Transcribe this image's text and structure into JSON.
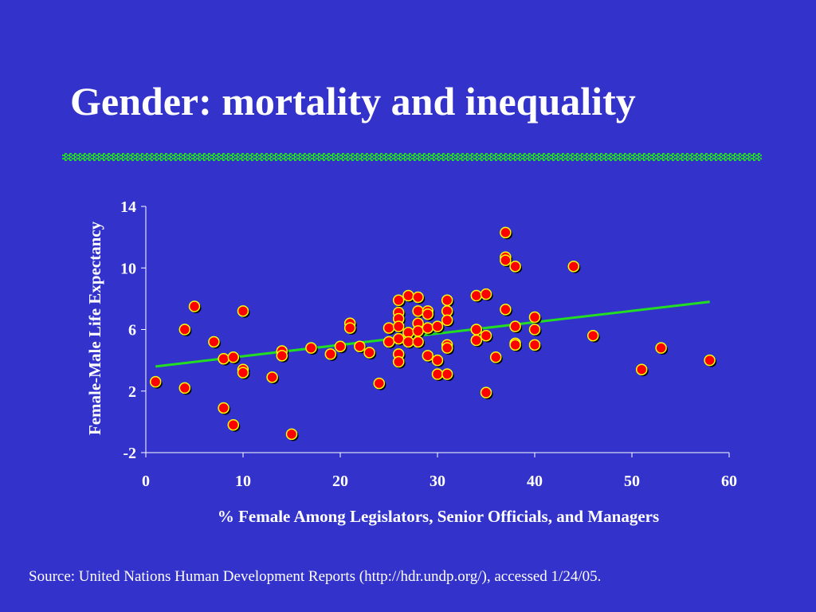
{
  "slide": {
    "title": "Gender: mortality and inequality",
    "source": "Source: United Nations Human Development Reports (http://hdr.undp.org/), accessed 1/24/05."
  },
  "colors": {
    "background": "#3333cc",
    "point_fill": "#ff0000",
    "point_stroke": "#ffff00",
    "point_shadow": "#000000",
    "trendline": "#22dd22",
    "title_rule": "#22dd22"
  },
  "chart_data": {
    "type": "scatter",
    "title": "",
    "xlabel": "% Female Among Legislators, Senior Officials, and Managers",
    "ylabel": "Female-Male Life Expectancy",
    "xlim": [
      0,
      60
    ],
    "ylim": [
      -2,
      14
    ],
    "x_ticks": [
      0,
      10,
      20,
      30,
      40,
      50,
      60
    ],
    "y_ticks": [
      -2,
      2,
      6,
      10,
      14
    ],
    "x_tick_labels": [
      "0",
      "10",
      "20",
      "30",
      "40",
      "50",
      "60"
    ],
    "y_tick_labels": [
      "-2",
      "2",
      "6",
      "10",
      "14"
    ],
    "grid": false,
    "legend": "none",
    "series": [
      {
        "points": [
          [
            1,
            2.6
          ],
          [
            4,
            6.0
          ],
          [
            4,
            2.2
          ],
          [
            5,
            7.5
          ],
          [
            7,
            5.2
          ],
          [
            8,
            4.1
          ],
          [
            8,
            0.9
          ],
          [
            9,
            4.2
          ],
          [
            9,
            -0.2
          ],
          [
            10,
            7.2
          ],
          [
            10,
            3.4
          ],
          [
            10,
            3.2
          ],
          [
            13,
            2.9
          ],
          [
            14,
            4.6
          ],
          [
            14,
            4.3
          ],
          [
            15,
            -0.8
          ],
          [
            17,
            4.8
          ],
          [
            19,
            4.4
          ],
          [
            20,
            4.9
          ],
          [
            21,
            6.4
          ],
          [
            21,
            6.1
          ],
          [
            22,
            4.9
          ],
          [
            23,
            4.5
          ],
          [
            24,
            2.5
          ],
          [
            25,
            6.1
          ],
          [
            25,
            5.2
          ],
          [
            26,
            7.9
          ],
          [
            26,
            7.1
          ],
          [
            26,
            6.7
          ],
          [
            26,
            6.2
          ],
          [
            26,
            5.4
          ],
          [
            26,
            4.4
          ],
          [
            26,
            3.9
          ],
          [
            27,
            8.2
          ],
          [
            27,
            5.8
          ],
          [
            27,
            5.2
          ],
          [
            28,
            8.1
          ],
          [
            28,
            7.2
          ],
          [
            28,
            6.4
          ],
          [
            28,
            5.9
          ],
          [
            28,
            5.2
          ],
          [
            29,
            7.2
          ],
          [
            29,
            7.0
          ],
          [
            29,
            6.1
          ],
          [
            29,
            4.3
          ],
          [
            30,
            6.2
          ],
          [
            30,
            4.0
          ],
          [
            30,
            3.1
          ],
          [
            31,
            7.9
          ],
          [
            31,
            7.2
          ],
          [
            31,
            6.6
          ],
          [
            31,
            5.0
          ],
          [
            31,
            4.8
          ],
          [
            31,
            3.1
          ],
          [
            34,
            8.2
          ],
          [
            34,
            6.0
          ],
          [
            34,
            5.3
          ],
          [
            35,
            8.3
          ],
          [
            35,
            5.6
          ],
          [
            35,
            1.9
          ],
          [
            36,
            4.2
          ],
          [
            37,
            12.3
          ],
          [
            37,
            10.7
          ],
          [
            37,
            10.5
          ],
          [
            37,
            7.3
          ],
          [
            38,
            10.1
          ],
          [
            38,
            6.2
          ],
          [
            38,
            5.1
          ],
          [
            38,
            5.0
          ],
          [
            40,
            6.8
          ],
          [
            40,
            6.0
          ],
          [
            40,
            5.0
          ],
          [
            44,
            10.1
          ],
          [
            46,
            5.6
          ],
          [
            51,
            3.4
          ],
          [
            53,
            4.8
          ],
          [
            58,
            4.0
          ]
        ]
      }
    ],
    "trendline": {
      "x_start": 1,
      "x_end": 58,
      "y_start": 3.6,
      "y_end": 7.8
    }
  }
}
